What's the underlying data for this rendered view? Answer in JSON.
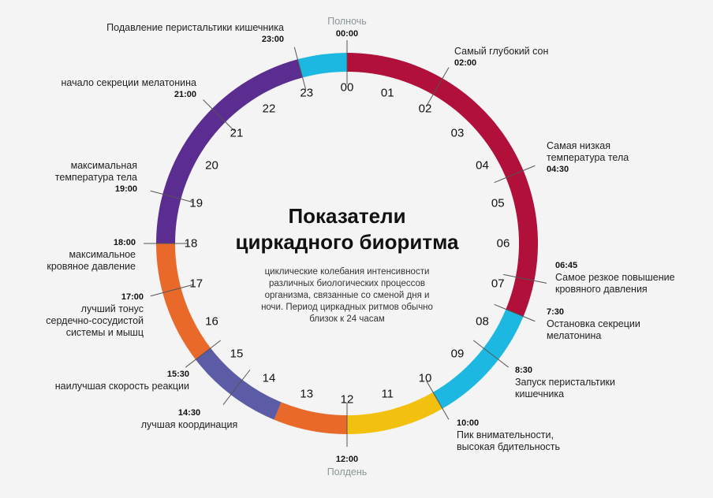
{
  "title": "Показатели циркадного биоритма",
  "title_lines": [
    "Показатели",
    "циркадного биоритма"
  ],
  "subtitle": "циклические колебания интенсивности различных биологических процессов организма, связанные со сменой дня и ночи. Период циркадных ритмов обычно близок к 24 часам",
  "midnight": {
    "time": "00:00",
    "label": "Полночь"
  },
  "noon": {
    "time": "12:00",
    "label": "Полдень"
  },
  "hours": [
    "00",
    "01",
    "02",
    "03",
    "04",
    "05",
    "06",
    "07",
    "08",
    "09",
    "10",
    "11",
    "12",
    "13",
    "14",
    "15",
    "16",
    "17",
    "18",
    "19",
    "20",
    "21",
    "22",
    "23"
  ],
  "segments": [
    {
      "from": 0,
      "to": 7.5,
      "color": "#B0103A"
    },
    {
      "from": 7.5,
      "to": 10,
      "color": "#1DB8E2"
    },
    {
      "from": 10,
      "to": 12,
      "color": "#F2C110"
    },
    {
      "from": 12,
      "to": 13.5,
      "color": "#E8692A"
    },
    {
      "from": 13.5,
      "to": 15.5,
      "color": "#5B5BA6"
    },
    {
      "from": 15.5,
      "to": 18,
      "color": "#E8692A"
    },
    {
      "from": 18,
      "to": 23,
      "color": "#5C2D91"
    },
    {
      "from": 23,
      "to": 24,
      "color": "#1DB8E2"
    }
  ],
  "events": [
    {
      "time": "02:00",
      "label": "Самый глубокий сон"
    },
    {
      "time": "04:30",
      "label": "Самая низкая температура тела"
    },
    {
      "time": "06:45",
      "label": "Самое резкое повышение кровяного давления"
    },
    {
      "time": "7:30",
      "label": "Остановка секреции мелатонина"
    },
    {
      "time": "8:30",
      "label": "Запуск перистальтики кишечника"
    },
    {
      "time": "10:00",
      "label": "Пик внимательности, высокая бдительность"
    },
    {
      "time": "14:30",
      "label": "лучшая координация"
    },
    {
      "time": "15:30",
      "label": "наилучшая скорость реакции"
    },
    {
      "time": "17:00",
      "label": "лучший тонус сердечно-сосудистой системы и мышц"
    },
    {
      "time": "18:00",
      "label": "максимальное кровяное давление"
    },
    {
      "time": "19:00",
      "label": "максимальная температура тела"
    },
    {
      "time": "21:00",
      "label": "начало секреции мелатонина"
    },
    {
      "time": "23:00",
      "label": "Подавление перистальтики кишечника"
    }
  ],
  "event_lines": {
    "e0": [
      "Самый глубокий сон"
    ],
    "e1": [
      "Самая низкая",
      "температура тела"
    ],
    "e2": [
      "Самое резкое повышение",
      "кровяного давления"
    ],
    "e3": [
      "Остановка секреции",
      "мелатонина"
    ],
    "e4": [
      "Запуск перистальтики",
      "кишечника"
    ],
    "e5": [
      "Пик внимательности,",
      "высокая бдительность"
    ],
    "e6": [
      "лучшая координация"
    ],
    "e7": [
      "наилучшая скорость реакции"
    ],
    "e8": [
      "лучший тонус",
      "сердечно-сосудистой",
      "системы и мышц"
    ],
    "e9": [
      "максимальное",
      "кровяное давление"
    ],
    "e10": [
      "максимальная",
      "температура тела"
    ],
    "e11": [
      "начало секреции мелатонина"
    ],
    "e12": [
      "Подавление перистальтики кишечника"
    ]
  },
  "subtitle_lines": [
    "циклические колебания интенсивности",
    "различных биологических процессов",
    "организма, связанные со сменой дня и",
    "ночи. Период циркадных ритмов обычно",
    "близок к 24 часам"
  ]
}
